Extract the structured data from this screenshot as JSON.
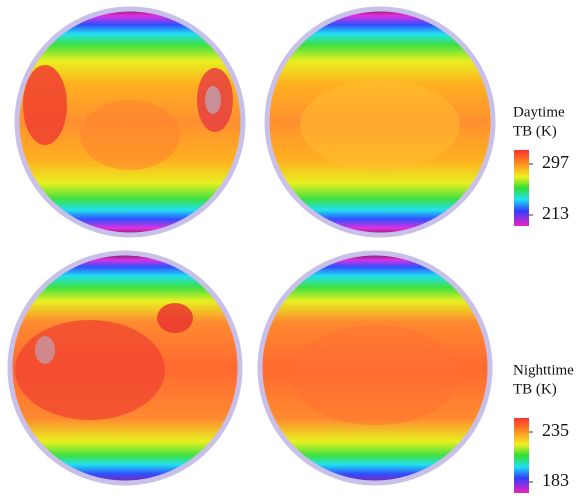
{
  "colorbars": [
    {
      "title_lines": [
        "Daytime",
        "TB (K)"
      ],
      "max": 297,
      "min": 213
    },
    {
      "title_lines": [
        "Nighttime",
        "TB (K)"
      ],
      "max": 235,
      "min": 183
    }
  ]
}
